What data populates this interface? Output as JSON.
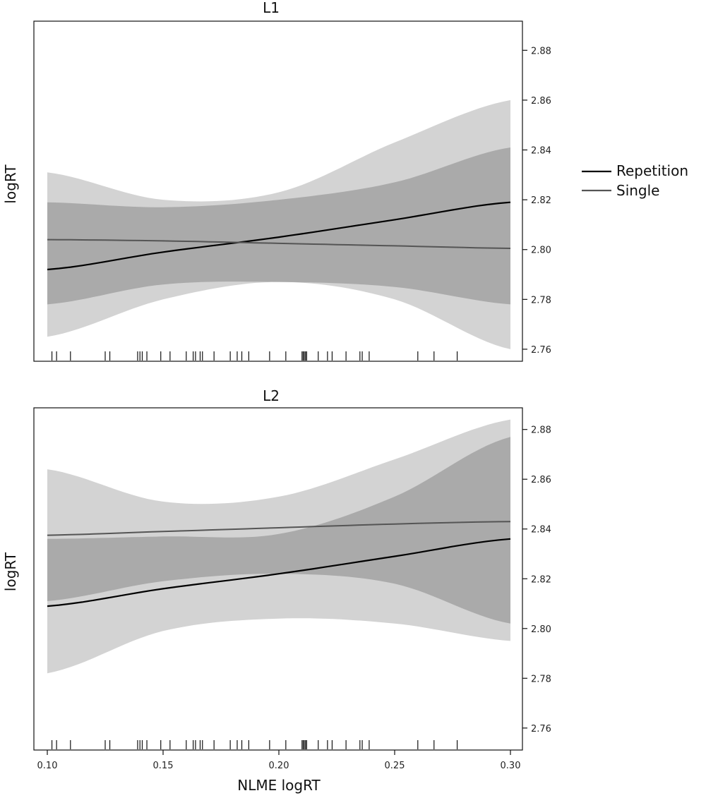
{
  "chart_data": {
    "type": "line",
    "xlabel": "NLME logRT",
    "x_ticks": [
      "0.10",
      "0.15",
      "0.20",
      "0.25",
      "0.30"
    ],
    "xlim": [
      0.1,
      0.3
    ],
    "legend": {
      "position": "right",
      "entries": [
        {
          "name": "Repetition",
          "color": "#000000"
        },
        {
          "name": "Single",
          "color": "#555555"
        }
      ]
    },
    "rug_x": [
      0.102,
      0.104,
      0.11,
      0.125,
      0.127,
      0.139,
      0.14,
      0.141,
      0.143,
      0.149,
      0.153,
      0.16,
      0.163,
      0.164,
      0.166,
      0.167,
      0.172,
      0.179,
      0.182,
      0.184,
      0.187,
      0.196,
      0.203,
      0.21,
      0.2105,
      0.211,
      0.2115,
      0.212,
      0.217,
      0.221,
      0.223,
      0.229,
      0.235,
      0.236,
      0.239,
      0.26,
      0.267,
      0.277
    ],
    "panels": [
      {
        "title": "L1",
        "ylabel": "logRT",
        "ylim": [
          2.758,
          2.89
        ],
        "y_ticks": [
          "2.76",
          "2.78",
          "2.80",
          "2.82",
          "2.84",
          "2.86",
          "2.88"
        ],
        "x": [
          0.1,
          0.15,
          0.2,
          0.25,
          0.3
        ],
        "series": [
          {
            "name": "Repetition",
            "color": "#000000",
            "values": [
              2.792,
              2.799,
              2.805,
              2.812,
              2.819
            ],
            "ci_lower": [
              2.765,
              2.78,
              2.787,
              2.78,
              2.76
            ],
            "ci_upper": [
              2.831,
              2.82,
              2.823,
              2.843,
              2.86
            ]
          },
          {
            "name": "Single",
            "color": "#555555",
            "values": [
              2.804,
              2.8035,
              2.8025,
              2.8015,
              2.8005
            ],
            "ci_lower": [
              2.778,
              2.786,
              2.787,
              2.785,
              2.778
            ],
            "ci_upper": [
              2.819,
              2.817,
              2.82,
              2.827,
              2.841
            ]
          }
        ]
      },
      {
        "title": "L2",
        "ylabel": "logRT",
        "ylim": [
          2.754,
          2.887
        ],
        "y_ticks": [
          "2.76",
          "2.78",
          "2.80",
          "2.82",
          "2.84",
          "2.86",
          "2.88"
        ],
        "x": [
          0.1,
          0.15,
          0.2,
          0.25,
          0.3
        ],
        "series": [
          {
            "name": "Repetition",
            "color": "#000000",
            "values": [
              2.809,
              2.816,
              2.822,
              2.829,
              2.836
            ],
            "ci_lower": [
              2.782,
              2.799,
              2.804,
              2.802,
              2.795
            ],
            "ci_upper": [
              2.864,
              2.851,
              2.853,
              2.868,
              2.884
            ]
          },
          {
            "name": "Single",
            "color": "#555555",
            "values": [
              2.8375,
              2.839,
              2.8405,
              2.842,
              2.843
            ],
            "ci_lower": [
              2.811,
              2.819,
              2.822,
              2.818,
              2.802
            ],
            "ci_upper": [
              2.836,
              2.837,
              2.838,
              2.853,
              2.877
            ]
          }
        ]
      }
    ]
  }
}
